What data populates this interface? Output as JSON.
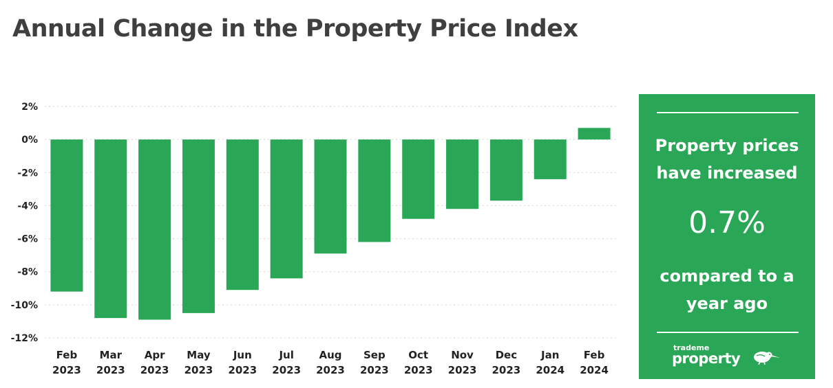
{
  "title": "Annual Change in the Property Price Index",
  "colors": {
    "bar": "#2aa756",
    "panel": "#2aa756",
    "title": "#3f3f3f",
    "grid": "#d0d0d0"
  },
  "panel": {
    "line1": [
      "Property prices",
      "have increased"
    ],
    "value": "0.7%",
    "line2": [
      "compared to a",
      "year ago"
    ],
    "logo_small": "trademe",
    "logo_big": "property",
    "logo_icon": "kiwi-bird-icon"
  },
  "chart_data": {
    "type": "bar",
    "categories": [
      [
        "Feb",
        "2023"
      ],
      [
        "Mar",
        "2023"
      ],
      [
        "Apr",
        "2023"
      ],
      [
        "May",
        "2023"
      ],
      [
        "Jun",
        "2023"
      ],
      [
        "Jul",
        "2023"
      ],
      [
        "Aug",
        "2023"
      ],
      [
        "Sep",
        "2023"
      ],
      [
        "Oct",
        "2023"
      ],
      [
        "Nov",
        "2023"
      ],
      [
        "Dec",
        "2023"
      ],
      [
        "Jan",
        "2024"
      ],
      [
        "Feb",
        "2024"
      ]
    ],
    "values": [
      -9.2,
      -10.8,
      -10.9,
      -10.5,
      -9.1,
      -8.4,
      -6.9,
      -6.2,
      -4.8,
      -4.2,
      -3.7,
      -2.4,
      0.7
    ],
    "ylim": [
      -12,
      2
    ],
    "yticks": [
      2,
      0,
      -2,
      -4,
      -6,
      -8,
      -10,
      -12
    ],
    "ytick_labels": [
      "2%",
      "0%",
      "-2%",
      "-4%",
      "-6%",
      "-8%",
      "-10%",
      "-12%"
    ],
    "grid": true,
    "xlabel": "",
    "ylabel": ""
  }
}
